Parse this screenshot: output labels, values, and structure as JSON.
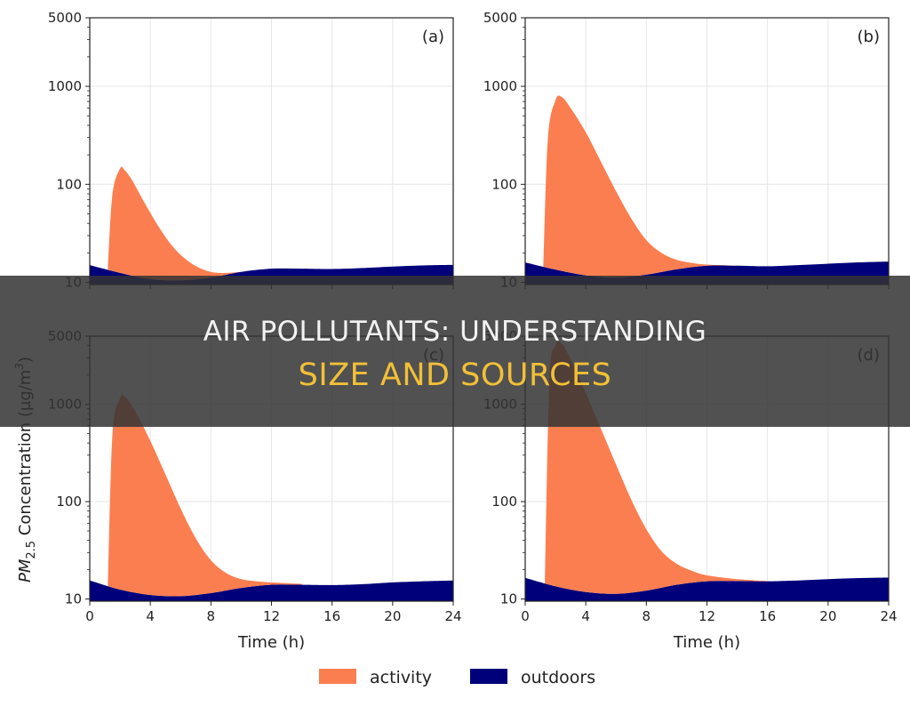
{
  "banner": {
    "line1": "AIR POLLUTANTS: UNDERSTANDING",
    "line2": "SIZE AND SOURCES"
  },
  "colors": {
    "activity": "#fb7e50",
    "outdoors": "#00007a",
    "banner_bg": "#323232",
    "banner_line1": "#f2f2f2",
    "banner_line2": "#f2c037"
  },
  "legend": {
    "position": "bottom-center",
    "items": [
      {
        "label": "activity",
        "color": "#fb7e50"
      },
      {
        "label": "outdoors",
        "color": "#00007a"
      }
    ]
  },
  "shared": {
    "xlabel": "Time (h)",
    "ylabel": "PM",
    "ylabel_sub": "2.5",
    "ylabel_rest": " Concentration (μg/m",
    "ylabel_sup": "3",
    "ylabel_end": ")"
  },
  "chart_data": [
    {
      "type": "area",
      "panel_label": "(a)",
      "x_ticks": [
        0,
        4,
        8,
        12,
        16,
        20,
        24
      ],
      "x_tick_labels": [
        "0",
        "4",
        "8",
        "12",
        "16",
        "20",
        "24"
      ],
      "xlim": [
        0,
        24
      ],
      "y_scale": "log",
      "ylim": [
        9.5,
        5000
      ],
      "y_ticks": [
        10,
        100,
        1000,
        5000
      ],
      "y_tick_labels": [
        "10",
        "100",
        "1000",
        "5000"
      ],
      "grid": true,
      "series": [
        {
          "name": "outdoors",
          "x": [
            0,
            2,
            4,
            6,
            8,
            10,
            12,
            14,
            16,
            18,
            20,
            22,
            24
          ],
          "values": [
            15,
            12.5,
            10.8,
            10.5,
            11.2,
            12.8,
            13.8,
            13.8,
            13.7,
            14,
            14.5,
            14.9,
            15.1
          ]
        },
        {
          "name": "activity",
          "x": [
            1.2,
            1.5,
            2,
            2.3,
            2.8,
            3.5,
            4.5,
            5.5,
            6.5,
            7.5,
            8.5,
            10,
            12
          ],
          "values": [
            15,
            80,
            145,
            140,
            110,
            70,
            38,
            23,
            16.5,
            13.5,
            12.5,
            12.8,
            13.8
          ]
        }
      ]
    },
    {
      "type": "area",
      "panel_label": "(b)",
      "x_ticks": [
        0,
        4,
        8,
        12,
        16,
        20,
        24
      ],
      "x_tick_labels": [
        "0",
        "4",
        "8",
        "12",
        "16",
        "20",
        "24"
      ],
      "xlim": [
        0,
        24
      ],
      "y_scale": "log",
      "ylim": [
        9.5,
        5000
      ],
      "y_ticks": [
        10,
        100,
        1000,
        5000
      ],
      "y_tick_labels": [
        "10",
        "100",
        "1000",
        "5000"
      ],
      "grid": true,
      "series": [
        {
          "name": "outdoors",
          "x": [
            0,
            2,
            4,
            6,
            8,
            10,
            12,
            14,
            16,
            18,
            20,
            22,
            24
          ],
          "values": [
            16,
            13.5,
            11.8,
            11.2,
            12,
            13.6,
            14.8,
            14.8,
            14.6,
            15,
            15.5,
            16,
            16.3
          ]
        },
        {
          "name": "activity",
          "x": [
            1.2,
            1.5,
            2,
            2.4,
            3,
            4,
            5,
            6,
            7,
            8,
            9,
            10,
            11,
            12,
            14
          ],
          "values": [
            16,
            300,
            720,
            780,
            600,
            340,
            170,
            85,
            45,
            27,
            20,
            17,
            15.8,
            15.2,
            14.8
          ]
        }
      ]
    },
    {
      "type": "area",
      "panel_label": "(c)",
      "x_ticks": [
        0,
        4,
        8,
        12,
        16,
        20,
        24
      ],
      "x_tick_labels": [
        "0",
        "4",
        "8",
        "12",
        "16",
        "20",
        "24"
      ],
      "xlim": [
        0,
        24
      ],
      "y_scale": "log",
      "ylim": [
        9.5,
        5000
      ],
      "y_ticks": [
        10,
        100,
        1000,
        5000
      ],
      "y_tick_labels": [
        "10",
        "100",
        "1000",
        "5000"
      ],
      "grid": true,
      "series": [
        {
          "name": "outdoors",
          "x": [
            0,
            2,
            4,
            6,
            8,
            10,
            12,
            14,
            16,
            18,
            20,
            22,
            24
          ],
          "values": [
            15.5,
            12.5,
            11,
            10.7,
            11.5,
            13,
            14,
            14,
            13.9,
            14.2,
            14.8,
            15.2,
            15.5
          ]
        },
        {
          "name": "activity",
          "x": [
            1.2,
            1.5,
            2,
            2.3,
            3,
            4,
            5,
            6,
            7,
            8,
            9,
            10,
            11,
            12,
            14
          ],
          "values": [
            15.5,
            500,
            1150,
            1200,
            850,
            420,
            190,
            85,
            42,
            25,
            18.5,
            16,
            15.2,
            14.8,
            14.3
          ]
        }
      ]
    },
    {
      "type": "area",
      "panel_label": "(d)",
      "x_ticks": [
        0,
        4,
        8,
        12,
        16,
        20,
        24
      ],
      "x_tick_labels": [
        "0",
        "4",
        "8",
        "12",
        "16",
        "20",
        "24"
      ],
      "xlim": [
        0,
        24
      ],
      "y_scale": "log",
      "ylim": [
        9.5,
        5000
      ],
      "y_ticks": [
        10,
        100,
        1000,
        5000
      ],
      "y_tick_labels": [
        "10",
        "100",
        "1000",
        "5000"
      ],
      "grid": true,
      "series": [
        {
          "name": "outdoors",
          "x": [
            0,
            2,
            4,
            6,
            8,
            10,
            12,
            14,
            16,
            18,
            20,
            22,
            24
          ],
          "values": [
            16.5,
            13.5,
            11.8,
            11.3,
            12.2,
            14,
            15.2,
            15.3,
            15.2,
            15.5,
            16,
            16.4,
            16.6
          ]
        },
        {
          "name": "activity",
          "x": [
            1.3,
            1.6,
            2,
            2.4,
            3,
            4,
            5,
            6,
            7,
            8,
            9,
            10,
            11,
            12,
            14,
            16
          ],
          "values": [
            16.5,
            1800,
            4000,
            4200,
            2900,
            1300,
            560,
            240,
            105,
            52,
            31,
            23,
            19.5,
            17.5,
            16,
            15.3
          ]
        }
      ]
    }
  ]
}
